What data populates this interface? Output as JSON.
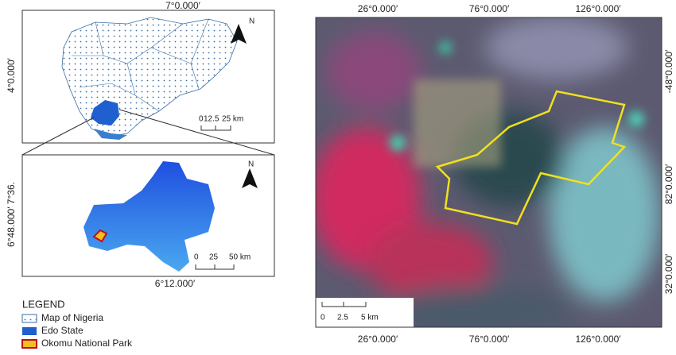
{
  "inset_nigeria": {
    "top_label": "7°0.000′",
    "left_label": "4°0.000′",
    "north": "N",
    "scale": [
      "0",
      "12.5",
      "25 km"
    ]
  },
  "inset_edo": {
    "left_label": "6°48.000′ 7°36.",
    "north": "N",
    "scale": [
      "0",
      "25",
      "50 km"
    ],
    "bottom_label": "6°12.000′"
  },
  "legend": {
    "title": "LEGEND",
    "items": [
      "Map of Nigeria",
      "Edo State",
      "Okomu National Park"
    ]
  },
  "satellite": {
    "top_labels": [
      "26°0.000′",
      "76°0.000′",
      "126°0.000′"
    ],
    "bottom_labels": [
      "26°0.000′",
      "76°0.000′",
      "126°0.000′"
    ],
    "right_labels": [
      "-48°0.000′",
      "82°0.000′",
      "32°0.000′"
    ],
    "scale": [
      "0",
      "2.5",
      "5 km"
    ]
  }
}
